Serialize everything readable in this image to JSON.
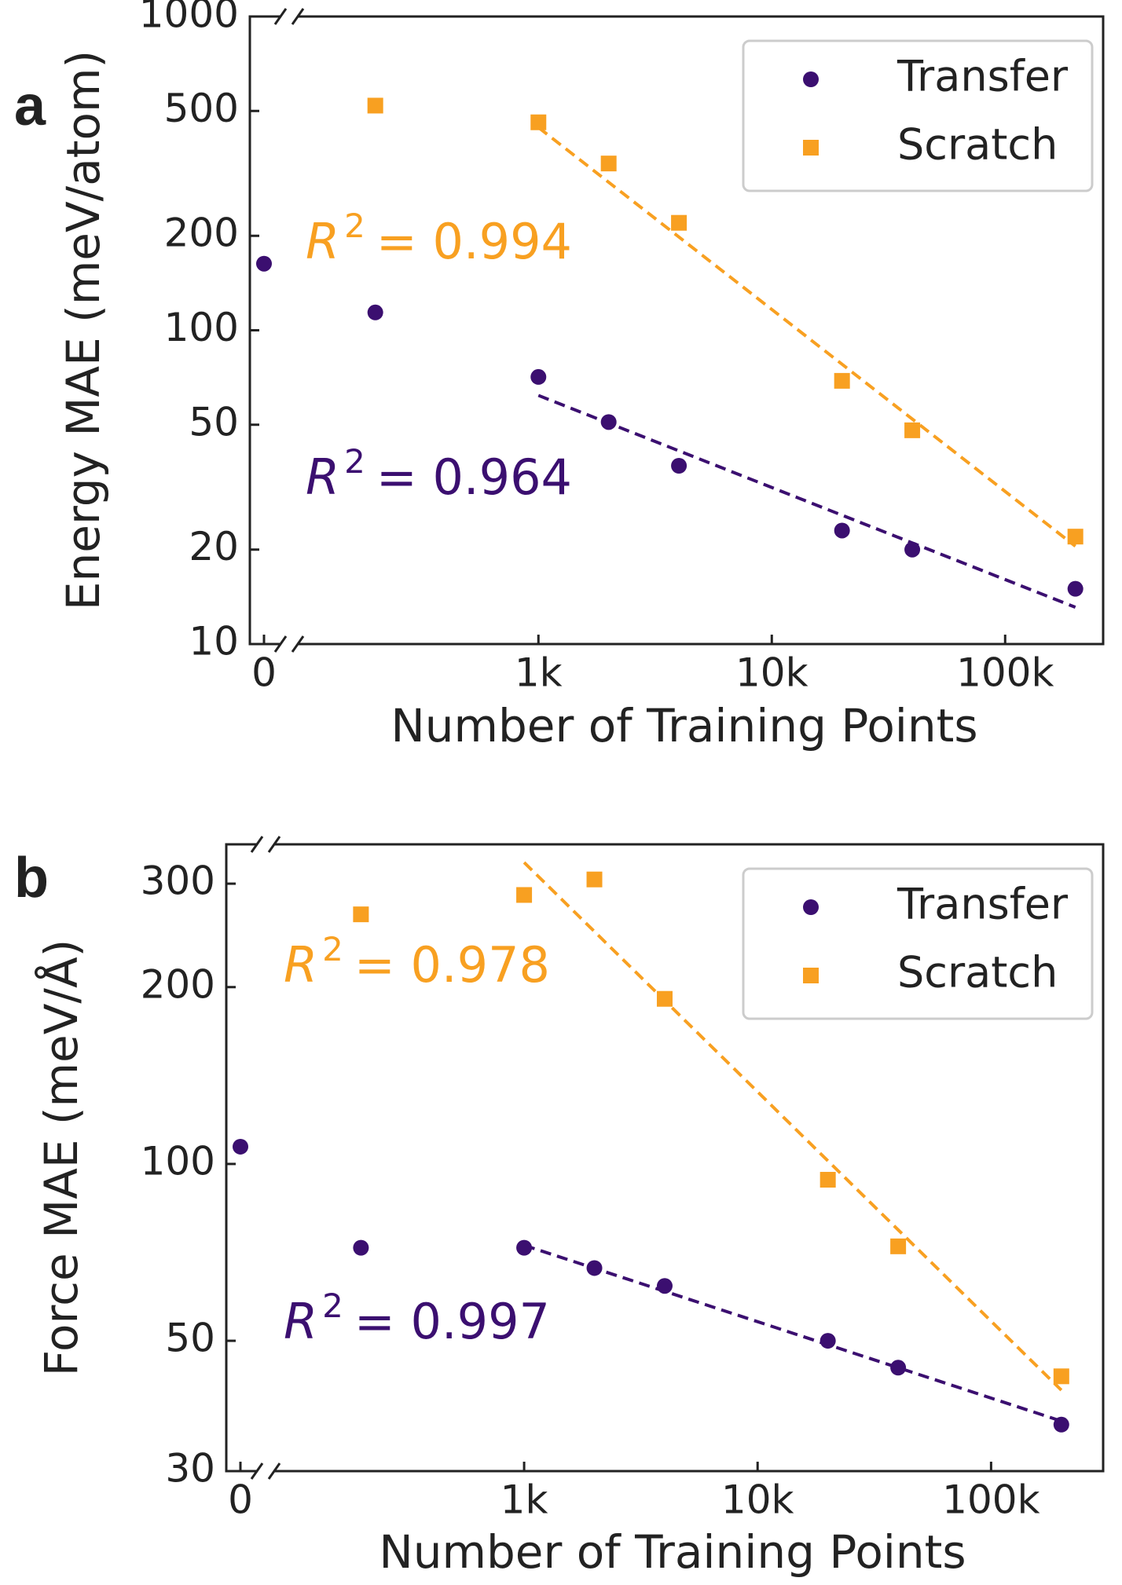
{
  "chart_data": [
    {
      "type": "scatter",
      "panel": "a",
      "xlabel": "Number of Training Points",
      "ylabel": "Energy MAE (meV/atom)",
      "xscale": "log",
      "yscale": "log",
      "x_break": true,
      "legend": "upper right",
      "x": [
        0,
        200,
        1000,
        2000,
        4000,
        20000,
        40000,
        200000
      ],
      "xlim": [
        58,
        263000
      ],
      "xticks": [
        0,
        {
          "value": 1000,
          "label": "1k"
        },
        {
          "value": 10000,
          "label": "10k"
        },
        {
          "value": 100000,
          "label": "100k"
        }
      ],
      "ylim": [
        10,
        1000
      ],
      "yticks": [
        10,
        20,
        50,
        100,
        200,
        500,
        1000
      ],
      "series": [
        {
          "name": "Transfer",
          "color": "#3b0f70",
          "marker": "circle",
          "values": [
            163,
            114,
            71,
            51,
            37,
            23,
            20,
            15
          ],
          "fit_x": [
            1000,
            200000
          ],
          "fit_y": [
            62,
            13.1
          ],
          "fit_label": [
            "R",
            "2",
            "= 0.964"
          ]
        },
        {
          "name": "Scratch",
          "color": "#f8a021",
          "marker": "square",
          "values": [
            null,
            520,
            460,
            340,
            220,
            69,
            48,
            22
          ],
          "fit_x": [
            1000,
            200000
          ],
          "fit_y": [
            443,
            20.5
          ],
          "fit_label": [
            "R",
            "2",
            "= 0.994"
          ]
        }
      ]
    },
    {
      "type": "scatter",
      "panel": "b",
      "xlabel": "Number of Training Points",
      "ylabel": "Force MAE (meV/Å)",
      "xscale": "log",
      "yscale": "log",
      "x_break": true,
      "legend": "upper right",
      "x": [
        0,
        200,
        1000,
        2000,
        4000,
        20000,
        40000,
        200000
      ],
      "xlim": [
        53,
        302000
      ],
      "xticks": [
        0,
        {
          "value": 1000,
          "label": "1k"
        },
        {
          "value": 10000,
          "label": "10k"
        },
        {
          "value": 100000,
          "label": "100k"
        }
      ],
      "ylim": [
        30,
        350
      ],
      "yticks": [
        30,
        50,
        100,
        200,
        300
      ],
      "series": [
        {
          "name": "Transfer",
          "color": "#3b0f70",
          "marker": "circle",
          "values": [
            107,
            72,
            72,
            66.5,
            62,
            50,
            45,
            36
          ],
          "fit_x": [
            1000,
            200000
          ],
          "fit_y": [
            72.7,
            36.5
          ],
          "fit_label": [
            "R",
            "2",
            "= 0.997"
          ]
        },
        {
          "name": "Scratch",
          "color": "#f8a021",
          "marker": "square",
          "values": [
            null,
            266,
            287,
            305,
            191,
            94,
            72.4,
            43.5
          ],
          "fit_x": [
            1000,
            200000
          ],
          "fit_y": [
            326,
            41.2
          ],
          "fit_label": [
            "R",
            "2",
            "= 0.978"
          ]
        }
      ]
    }
  ]
}
